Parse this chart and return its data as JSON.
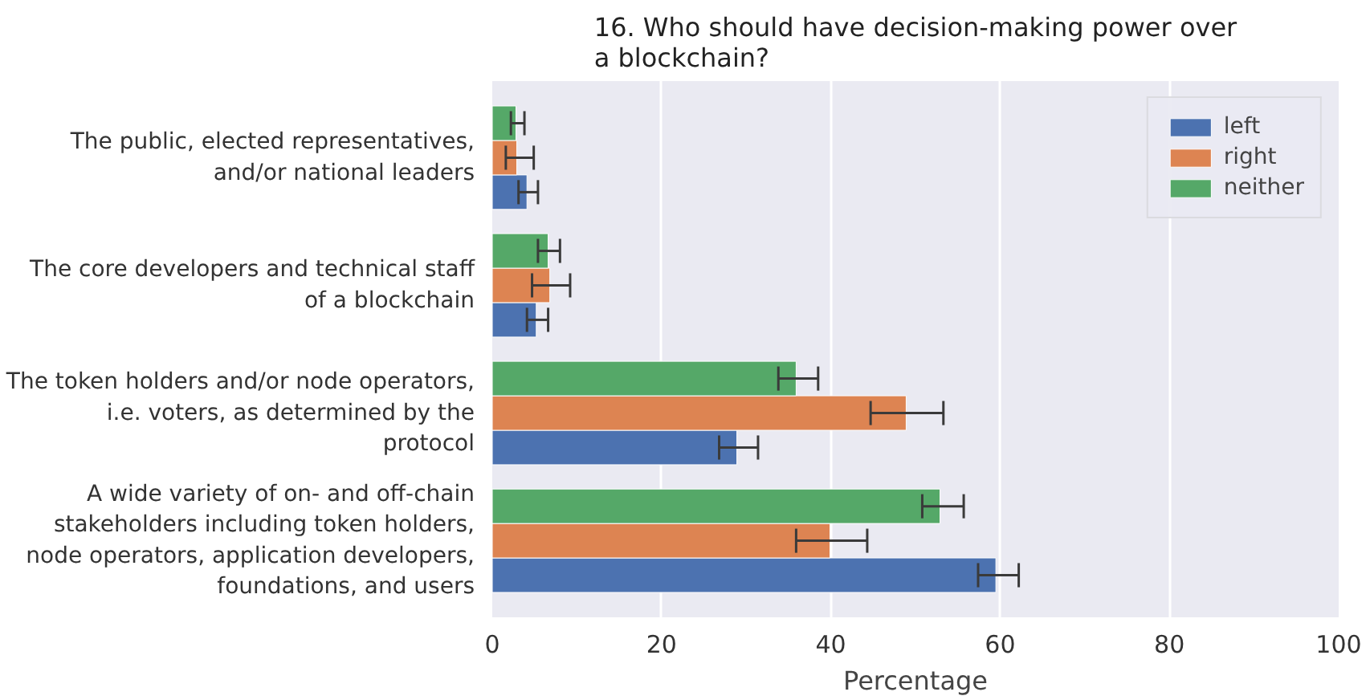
{
  "chart_data": {
    "type": "bar",
    "orientation": "horizontal",
    "title": "16. Who should have decision-making power over a blockchain?",
    "xlabel": "Percentage",
    "categories": [
      "The public, elected representatives, and/or national leaders",
      "The core developers and technical staff of a blockchain",
      "The token holders and/or node operators, i.e. voters, as determined by the protocol",
      "A wide variety of on- and off-chain stakeholders including token holders, node operators, application developers, foundations, and users"
    ],
    "series": [
      {
        "name": "left",
        "color": "#4c72b0",
        "values": [
          4.1,
          5.2,
          28.9,
          59.5
        ],
        "errors": [
          [
            3.1,
            5.4
          ],
          [
            4.1,
            6.6
          ],
          [
            26.8,
            31.4
          ],
          [
            57.4,
            62.2
          ]
        ]
      },
      {
        "name": "right",
        "color": "#dd8452",
        "values": [
          2.9,
          6.8,
          48.9,
          39.9
        ],
        "errors": [
          [
            1.6,
            4.9
          ],
          [
            4.7,
            9.2
          ],
          [
            44.7,
            53.3
          ],
          [
            35.9,
            44.3
          ]
        ]
      },
      {
        "name": "neither",
        "color": "#55a868",
        "values": [
          2.8,
          6.6,
          35.9,
          52.9
        ],
        "errors": [
          [
            2.2,
            3.8
          ],
          [
            5.4,
            8.0
          ],
          [
            33.8,
            38.5
          ],
          [
            50.8,
            55.7
          ]
        ]
      }
    ],
    "xlim": [
      0,
      100
    ],
    "xticks": [
      0,
      20,
      40,
      60,
      80,
      100
    ],
    "grid": "x",
    "legend": "top right"
  }
}
